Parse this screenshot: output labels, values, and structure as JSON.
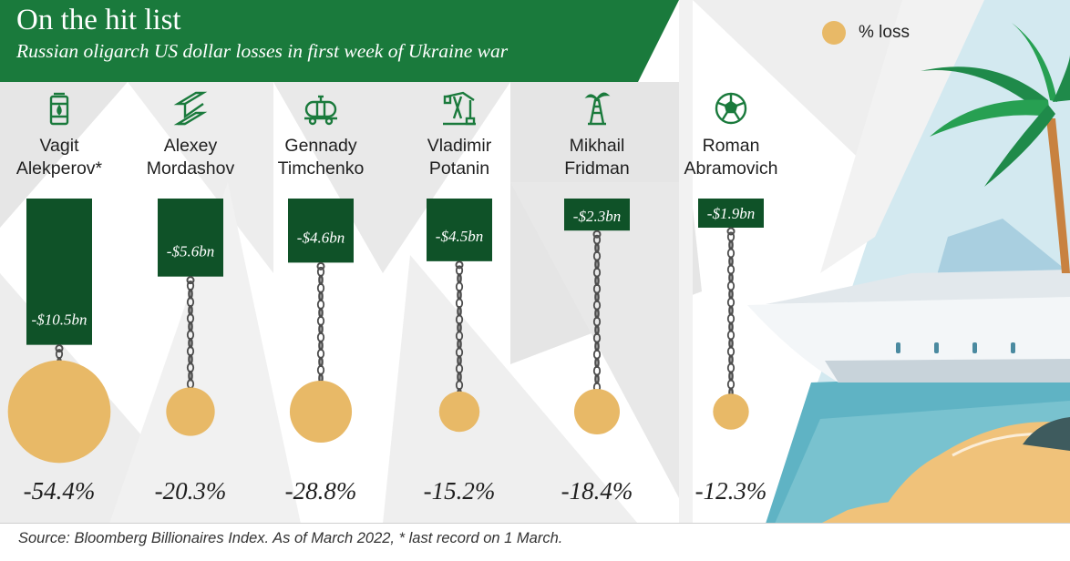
{
  "title": "On the hit list",
  "subtitle": "Russian oligarch US dollar losses in first week of Ukraine war",
  "legend": {
    "label": "% loss"
  },
  "source": "Source: Bloomberg Billionaires Index. As of March 2022, * last record on 1 March.",
  "colors": {
    "brand_green": "#1a7a3c",
    "bar_green": "#0f5228",
    "ball_gold": "#e8b967",
    "chain": "#4d4d4d"
  },
  "chart_data": {
    "type": "bar",
    "orientation": "downward",
    "categories": [
      {
        "line1": "Vagit",
        "line2": "Alekperov*",
        "icon": "oil-barrel-icon"
      },
      {
        "line1": "Alexey",
        "line2": "Mordashov",
        "icon": "steel-beam-icon"
      },
      {
        "line1": "Gennady",
        "line2": "Timchenko",
        "icon": "tanker-wagon-icon"
      },
      {
        "line1": "Vladimir",
        "line2": "Potanin",
        "icon": "pumpjack-icon"
      },
      {
        "line1": "Mikhail",
        "line2": "Fridman",
        "icon": "oil-rig-icon"
      },
      {
        "line1": "Roman",
        "line2": "Abramovich",
        "icon": "football-icon"
      }
    ],
    "series": [
      {
        "name": "US dollar losses",
        "values": [
          -10.5,
          -5.6,
          -4.6,
          -4.5,
          -2.3,
          -1.9
        ],
        "labels": [
          "-$10.5bn",
          "-$5.6bn",
          "-$4.6bn",
          "-$4.5bn",
          "-$2.3bn",
          "-$1.9bn"
        ]
      },
      {
        "name": "% loss",
        "values": [
          -54.4,
          -20.3,
          -28.8,
          -15.2,
          -18.4,
          -12.3
        ],
        "labels": [
          "-54.4%",
          "-20.3%",
          "-28.8%",
          "-15.2%",
          "-18.4%",
          "-12.3%"
        ]
      }
    ]
  }
}
